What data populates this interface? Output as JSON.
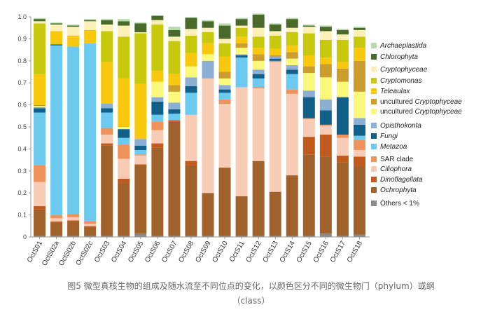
{
  "caption": {
    "line1": "图5 微型真核生物的组成及随水流至不同位点的变化，以颜色区分不同的微生物门（phylum）或纲",
    "line2": "（class）"
  },
  "colors": {
    "Others": "#8a8a8a",
    "Ochrophyta": "#a0622a",
    "Dinoflagellata": "#c25a1c",
    "Ciliophora": "#f8ccb4",
    "SAR": "#f0925c",
    "Metazoa": "#6ccaf0",
    "Fungi": "#10608a",
    "Opisthokonta": "#8aaed4",
    "unc_crypto_yellow": "#faf87a",
    "unc_crypto_gold": "#cc9c2c",
    "Teleaulax": "#f8c80c",
    "Cryptomonas": "#c8c80c",
    "Cryptophyceae": "#fcf0b8",
    "Chlorophyta": "#4a6a2a",
    "Archaeplastida": "#b6dcaa"
  },
  "chart_data": {
    "type": "stacked-bar",
    "ylim": [
      0,
      1.0
    ],
    "yticks": [
      "0",
      "0.1",
      "0.2",
      "0.3",
      "0.4",
      "0.5",
      "0.6",
      "0.7",
      "0.8",
      "0.9",
      "1.0"
    ],
    "categories": [
      "OctS01",
      "OctS02a",
      "OctS02b",
      "OctS02c",
      "OctS03",
      "OctS04",
      "OctS05",
      "OctS06",
      "OctS07",
      "OctS08",
      "OctS09",
      "OctS10",
      "OctS11",
      "OctS12",
      "OctS13",
      "OctS14",
      "OctS15",
      "OctS16",
      "OctS17",
      "OctS18"
    ],
    "stack_order": [
      "Others",
      "Ochrophyta",
      "Dinoflagellata",
      "Ciliophora",
      "SAR",
      "Metazoa",
      "Fungi",
      "Opisthokonta",
      "unc_crypto_yellow",
      "unc_crypto_gold",
      "Teleaulax",
      "Cryptomonas",
      "Cryptophyceae",
      "Chlorophyta",
      "Archaeplastida"
    ],
    "series": [
      {
        "name": "Others < 1%",
        "key": "Others",
        "values": [
          0.005,
          0.005,
          0.005,
          0.005,
          0.005,
          0.005,
          0.015,
          0.005,
          0.005,
          0.005,
          0.005,
          0.005,
          0.005,
          0.005,
          0.005,
          0.005,
          0.005,
          0.015,
          0.005,
          0.01
        ]
      },
      {
        "name": "Ochrophyta",
        "key": "Ochrophyta",
        "values": [
          0.12,
          0.06,
          0.065,
          0.04,
          0.41,
          0.24,
          0.31,
          0.4,
          0.52,
          0.32,
          0.195,
          0.31,
          0.18,
          0.34,
          0.2,
          0.275,
          0.37,
          0.35,
          0.335,
          0.31
        ]
      },
      {
        "name": "Dinoflagellata",
        "key": "Dinoflagellata",
        "values": [
          0.015,
          0.005,
          0.005,
          0.005,
          0.01,
          0.02,
          0.005,
          0.02,
          0.005,
          0.02,
          0.0,
          0.0,
          0.0,
          0.0,
          0.0,
          0.0,
          0.08,
          0.1,
          0.03,
          0.045
        ]
      },
      {
        "name": "Ciliophora",
        "key": "Ciliophora",
        "values": [
          0.11,
          0.015,
          0.015,
          0.01,
          0.04,
          0.09,
          0.04,
          0.06,
          0.0,
          0.21,
          0.52,
          0.29,
          0.495,
          0.33,
          0.59,
          0.37,
          0.08,
          0.04,
          0.08,
          0.03
        ]
      },
      {
        "name": "SAR clade",
        "key": "SAR",
        "values": [
          0.075,
          0.015,
          0.015,
          0.01,
          0.03,
          0.065,
          0.005,
          0.04,
          0.0,
          0.0,
          0.0,
          0.02,
          0.0,
          0.005,
          0.005,
          0.02,
          0.005,
          0.005,
          0.015,
          0.045
        ]
      },
      {
        "name": "Metazoa",
        "key": "Metazoa",
        "values": [
          0.24,
          0.77,
          0.76,
          0.81,
          0.07,
          0.03,
          0.02,
          0.03,
          0.03,
          0.1,
          0.0,
          0.03,
          0.135,
          0.04,
          0.0,
          0.07,
          0.0,
          0.0,
          0.0,
          0.02
        ]
      },
      {
        "name": "Fungi",
        "key": "Fungi",
        "values": [
          0.02,
          0.005,
          0.0,
          0.0,
          0.02,
          0.04,
          0.02,
          0.06,
          0.02,
          0.03,
          0.0,
          0.015,
          0.01,
          0.02,
          0.01,
          0.02,
          0.095,
          0.065,
          0.17,
          0.05
        ]
      },
      {
        "name": "Opisthokonta",
        "key": "Opisthokonta",
        "values": [
          0.005,
          0.0,
          0.0,
          0.0,
          0.02,
          0.0,
          0.03,
          0.02,
          0.03,
          0.04,
          0.08,
          0.02,
          0.005,
          0.02,
          0.01,
          0.02,
          0.03,
          0.05,
          0.0,
          0.03
        ]
      },
      {
        "name": "uncultured Cryptophyceae",
        "key": "unc_crypto_yellow",
        "values": [
          0.005,
          0.0,
          0.0,
          0.0,
          0.0,
          0.01,
          0.0,
          0.07,
          0.05,
          0.05,
          0.03,
          0.03,
          0.03,
          0.04,
          0.0,
          0.03,
          0.08,
          0.1,
          0.07,
          0.12
        ]
      },
      {
        "name": "uncultured Cryptophyceae",
        "key": "unc_crypto_gold",
        "values": [
          0.005,
          0.0,
          0.0,
          0.0,
          0.0,
          0.0,
          0.0,
          0.0,
          0.03,
          0.0,
          0.0,
          0.03,
          0.02,
          0.03,
          0.005,
          0.03,
          0.03,
          0.06,
          0.06,
          0.14
        ]
      },
      {
        "name": "Teleaulax",
        "key": "Teleaulax",
        "values": [
          0.14,
          0.06,
          0.05,
          0.06,
          0.19,
          0.22,
          0.25,
          0.05,
          0.05,
          0.06,
          0.05,
          0.07,
          0.03,
          0.03,
          0.03,
          0.03,
          0.05,
          0.03,
          0.03,
          0.06
        ]
      },
      {
        "name": "Cryptomonas",
        "key": "Cryptomonas",
        "values": [
          0.23,
          0.0,
          0.0,
          0.0,
          0.14,
          0.19,
          0.23,
          0.21,
          0.15,
          0.08,
          0.05,
          0.06,
          0.04,
          0.05,
          0.06,
          0.06,
          0.1,
          0.08,
          0.1,
          0.05
        ]
      },
      {
        "name": "Cryptophyceae",
        "key": "Cryptophyceae",
        "values": [
          0.01,
          0.03,
          0.04,
          0.04,
          0.03,
          0.05,
          0.005,
          0.02,
          0.02,
          0.03,
          0.02,
          0.02,
          0.01,
          0.04,
          0.02,
          0.02,
          0.03,
          0.04,
          0.025,
          0.03
        ]
      },
      {
        "name": "Chlorophyta",
        "key": "Chlorophyta",
        "values": [
          0.01,
          0.005,
          0.005,
          0.005,
          0.02,
          0.02,
          0.04,
          0.02,
          0.03,
          0.05,
          0.03,
          0.06,
          0.03,
          0.06,
          0.03,
          0.04,
          0.005,
          0.02,
          0.02,
          0.01
        ]
      },
      {
        "name": "Archaeplastida",
        "key": "Archaeplastida",
        "values": [
          0.005,
          0.005,
          0.005,
          0.005,
          0.005,
          0.01,
          0.005,
          0.0,
          0.015,
          0.005,
          0.005,
          0.01,
          0.005,
          0.005,
          0.005,
          0.005,
          0.005,
          0.005,
          0.005,
          0.005
        ]
      }
    ],
    "legend": [
      {
        "label": "Archaeplastida",
        "key": "Archaeplastida",
        "italic": true
      },
      {
        "label": "Chlorophyta",
        "key": "Chlorophyta",
        "italic": true
      },
      {
        "label": "Cryptophyceae",
        "key": "Cryptophyceae",
        "italic": true
      },
      {
        "label": "Cryptomonas",
        "key": "Cryptomonas",
        "italic": true
      },
      {
        "label": "Teleaulax",
        "key": "Teleaulax",
        "italic": true
      },
      {
        "label": "uncultured Cryptophyceae",
        "key": "unc_crypto_gold",
        "italic": false
      },
      {
        "label": "uncultured Cryptophyceae",
        "key": "unc_crypto_yellow",
        "italic": false
      },
      {
        "label": "Opisthokonta",
        "key": "Opisthokonta",
        "italic": true
      },
      {
        "label": "Fungi",
        "key": "Fungi",
        "italic": true
      },
      {
        "label": "Metazoa",
        "key": "Metazoa",
        "italic": true
      },
      {
        "label": "SAR clade",
        "key": "SAR",
        "italic": false
      },
      {
        "label": "Ciliophora",
        "key": "Ciliophora",
        "italic": true
      },
      {
        "label": "Dinoflagellata",
        "key": "Dinoflagellata",
        "italic": true
      },
      {
        "label": "Ochrophyta",
        "key": "Ochrophyta",
        "italic": true
      },
      {
        "label": "Others < 1%",
        "key": "Others",
        "italic": false
      }
    ],
    "grid": false,
    "legend_position": "right"
  }
}
